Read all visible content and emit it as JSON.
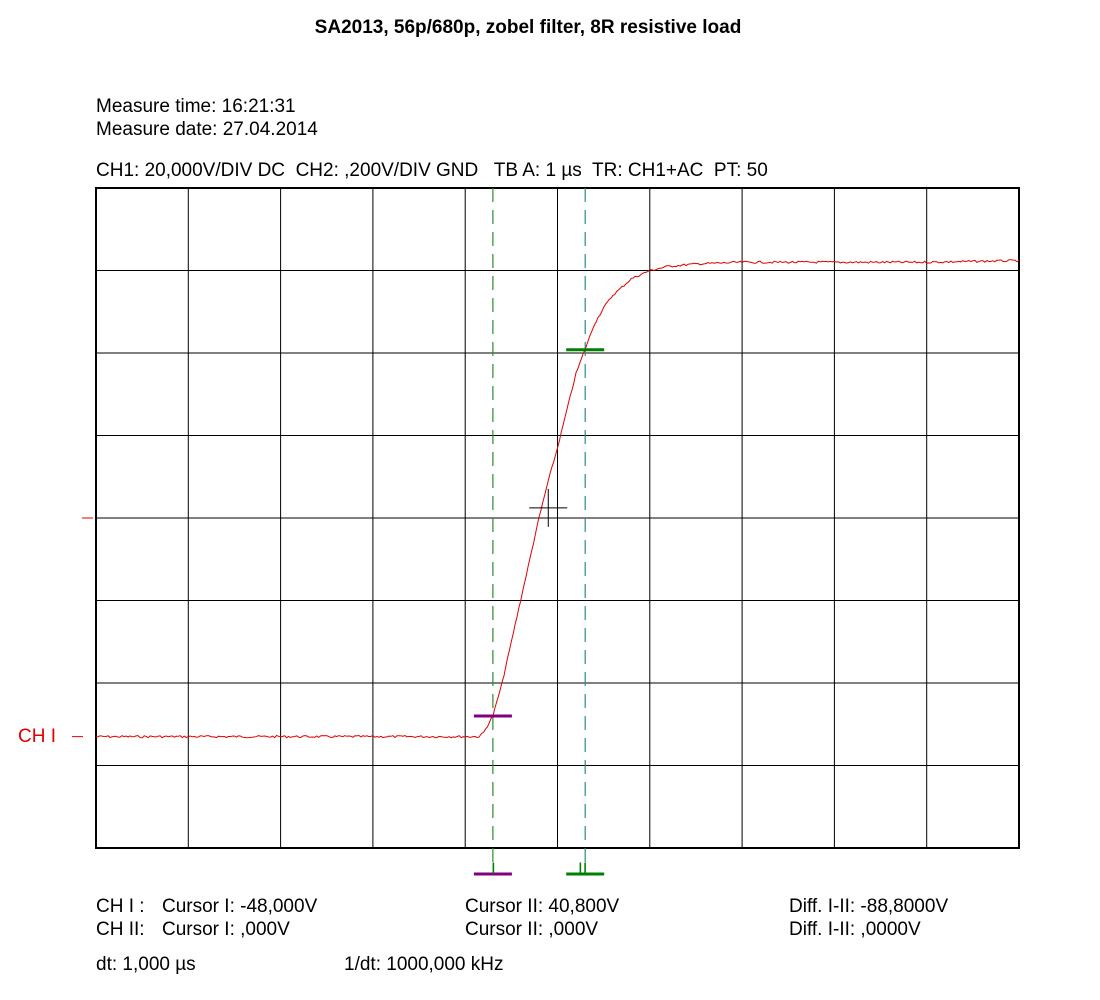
{
  "header": {
    "title": "SA2013, 56p/680p, zobel filter, 8R resistive load",
    "measure_time": "Measure time: 16:21:31",
    "measure_date": "Measure date: 27.04.2014",
    "settings": "CH1: 20,000V/DIV DC  CH2: ,200V/DIV GND   TB A: 1 µs  TR: CH1+AC  PT: 50"
  },
  "channel_label": "CH I",
  "cursor_markers": {
    "cursor1": "I",
    "cursor2": "II"
  },
  "readouts": {
    "ch1": {
      "label": "CH I :",
      "cursor1": "Cursor I: -48,000V",
      "cursor2": "Cursor II: 40,800V",
      "diff": "Diff. I-II: -88,8000V"
    },
    "ch2": {
      "label": "CH II:",
      "cursor1": "Cursor I: ,000V",
      "cursor2": "Cursor II: ,000V",
      "diff": "Diff. I-II: ,0000V"
    },
    "dt": "dt: 1,000 µs",
    "inv_dt": "1/dt: 1000,000 kHz"
  },
  "colors": {
    "trace": "#e00000",
    "grid": "#000000",
    "cursor1": "#800080",
    "cursor2": "#008000",
    "cursor1_line": "#2e8b2e",
    "cursor2_line": "#2e8b8b"
  },
  "chart_data": {
    "type": "line",
    "xlim": [
      0,
      10
    ],
    "ylim": [
      -4,
      4
    ],
    "grid": true,
    "x_unit": "div",
    "y_unit": "div",
    "channel_ref_div": -2.65,
    "trigger_level_div": 0,
    "cursors": {
      "I": {
        "x_div": 4.3,
        "y_div": -2.4
      },
      "II": {
        "x_div": 5.3,
        "y_div": 2.04
      }
    },
    "crosshair": {
      "x_div": 4.9,
      "y_div": 0.05
    },
    "series": [
      {
        "x": [
          0,
          1,
          2,
          3,
          4,
          4.15,
          4.2,
          4.3,
          4.4,
          4.5,
          4.6,
          4.7,
          4.8,
          4.9,
          5.0,
          5.1,
          5.2,
          5.3,
          5.35,
          5.4,
          5.5,
          5.6,
          5.7,
          5.8,
          5.9,
          6.0,
          6.2,
          6.5,
          7.0,
          8.0,
          9.0,
          10.0
        ],
        "y": [
          -2.65,
          -2.65,
          -2.65,
          -2.65,
          -2.65,
          -2.65,
          -2.6,
          -2.4,
          -2.0,
          -1.5,
          -1.0,
          -0.5,
          0.0,
          0.45,
          0.85,
          1.3,
          1.75,
          2.05,
          2.2,
          2.35,
          2.55,
          2.7,
          2.8,
          2.9,
          2.95,
          3.0,
          3.05,
          3.08,
          3.1,
          3.1,
          3.1,
          3.12
        ]
      }
    ]
  }
}
